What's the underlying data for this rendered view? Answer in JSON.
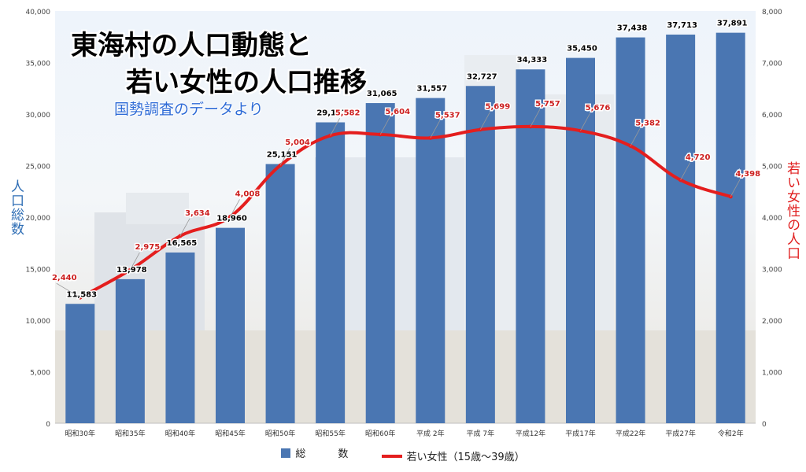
{
  "title_line1": "東海村の人口動態と",
  "title_line2": "若い女性の人口推移",
  "subtitle": "国勢調査のデータより",
  "colors": {
    "bars": "#4a76b2",
    "line": "#e41e1e",
    "bar_labels": "#000000",
    "line_labels": "#cc1f1f",
    "left_axis_title": "#2f6eb5",
    "right_axis_title": "#e02020"
  },
  "chart_data": {
    "type": "bar",
    "categories": [
      "昭和30年",
      "昭和35年",
      "昭和40年",
      "昭和45年",
      "昭和50年",
      "昭和55年",
      "昭和60年",
      "平成 2年",
      "平成 7年",
      "平成12年",
      "平成17年",
      "平成22年",
      "平成27年",
      "令和2年"
    ],
    "ylabel": "人口総数",
    "ylabel_right": "若い女性の人口",
    "ylim": [
      0,
      40000
    ],
    "ylim_right": [
      0,
      8000
    ],
    "yticks": [
      0,
      5000,
      10000,
      15000,
      20000,
      25000,
      30000,
      35000,
      40000
    ],
    "yticks_right": [
      0,
      1000,
      2000,
      3000,
      4000,
      5000,
      6000,
      7000,
      8000
    ],
    "legend_position": "bottom",
    "grid": false,
    "series": [
      {
        "name": "総　数",
        "type": "bar",
        "axis": "left",
        "values": [
          11583,
          13978,
          16565,
          18960,
          25151,
          29197,
          31065,
          31557,
          32727,
          34333,
          35450,
          37438,
          37713,
          37891
        ]
      },
      {
        "name": "若い女性（15歳～39歳）",
        "type": "line",
        "axis": "right",
        "values": [
          2440,
          2975,
          3634,
          4008,
          5004,
          5582,
          5604,
          5537,
          5699,
          5757,
          5676,
          5382,
          4720,
          4398
        ]
      }
    ]
  }
}
